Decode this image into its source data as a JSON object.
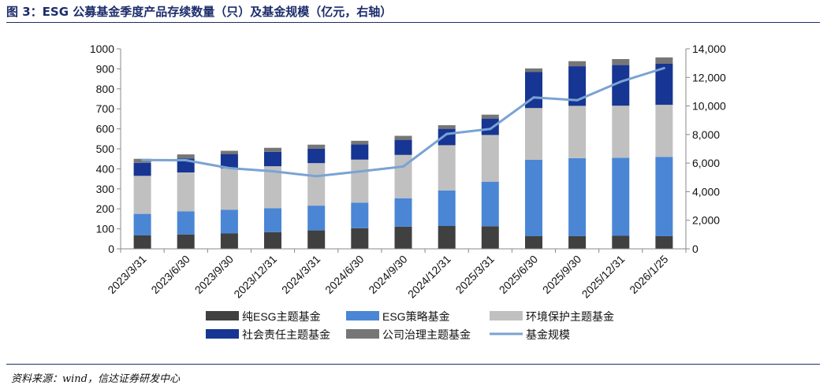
{
  "title": "图 3：ESG 公募基金季度产品存续数量（只）及基金规模（亿元，右轴）",
  "source": "资料来源：wind，信达证券研发中心",
  "chart_data": {
    "type": "bar",
    "stacked": true,
    "categories": [
      "2023/3/31",
      "2023/6/30",
      "2023/9/30",
      "2023/12/31",
      "2024/3/31",
      "2024/6/30",
      "2024/9/30",
      "2024/12/31",
      "2025/3/31",
      "2025/6/30",
      "2025/9/30",
      "2025/12/31",
      "2026/1/25"
    ],
    "series": [
      {
        "name": "纯ESG主题基金",
        "type": "bar",
        "axis": "left",
        "color": "#404040",
        "values": [
          67,
          72,
          77,
          83,
          92,
          103,
          111,
          114,
          113,
          63,
          64,
          65,
          64
        ]
      },
      {
        "name": "ESG策略基金",
        "type": "bar",
        "axis": "left",
        "color": "#4a86d4",
        "values": [
          108,
          115,
          118,
          120,
          124,
          128,
          142,
          178,
          223,
          382,
          389,
          390,
          396
        ]
      },
      {
        "name": "环境保护主题基金",
        "type": "bar",
        "axis": "left",
        "color": "#c0c0c0",
        "values": [
          190,
          195,
          207,
          210,
          212,
          215,
          217,
          226,
          233,
          259,
          262,
          261,
          260
        ]
      },
      {
        "name": "社会责任主题基金",
        "type": "bar",
        "axis": "left",
        "color": "#173592",
        "values": [
          65,
          70,
          72,
          72,
          73,
          76,
          75,
          82,
          82,
          180,
          198,
          203,
          205
        ]
      },
      {
        "name": "公司治理主题基金",
        "type": "bar",
        "axis": "left",
        "color": "#767676",
        "values": [
          20,
          20,
          16,
          20,
          20,
          18,
          20,
          18,
          20,
          18,
          25,
          30,
          32
        ]
      },
      {
        "name": "基金规模",
        "type": "line",
        "axis": "right",
        "color": "#7aa3d3",
        "values": [
          6220,
          6200,
          5650,
          5430,
          5080,
          5420,
          5760,
          8040,
          8390,
          10600,
          10400,
          11700,
          12650
        ]
      }
    ],
    "ylim_left": [
      0,
      1000
    ],
    "yticks_left": [
      "0",
      "100",
      "200",
      "300",
      "400",
      "500",
      "600",
      "700",
      "800",
      "900",
      "1000"
    ],
    "ylim_right": [
      0,
      14000
    ],
    "yticks_right": [
      "0",
      "2,000",
      "4,000",
      "6,000",
      "8,000",
      "10,000",
      "12,000",
      "14,000"
    ],
    "legend_position": "bottom",
    "grid": false
  }
}
